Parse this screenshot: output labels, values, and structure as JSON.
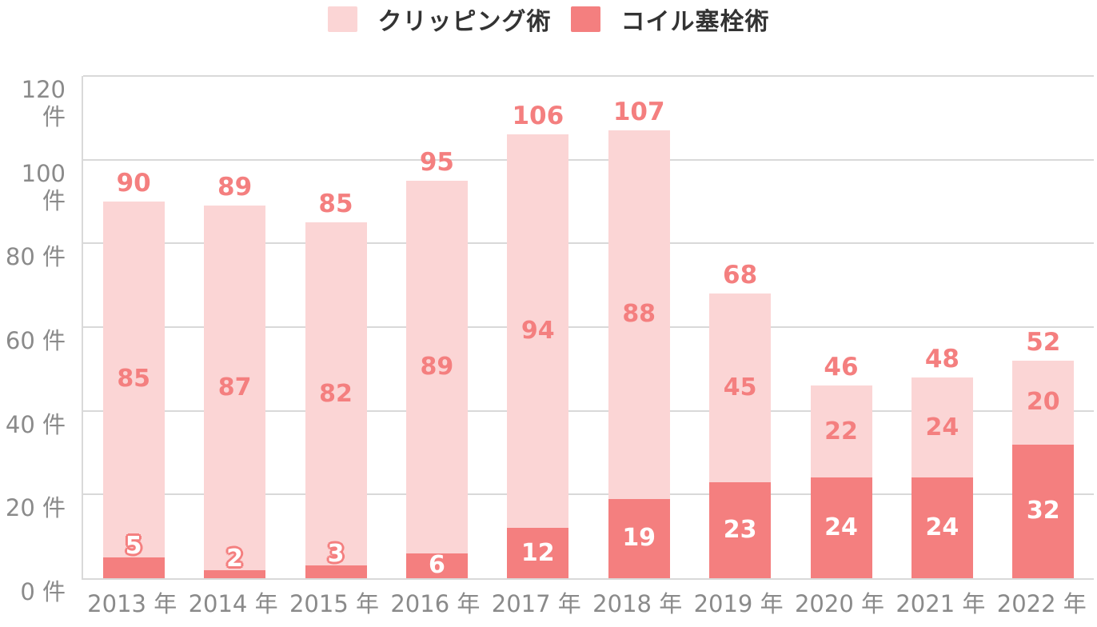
{
  "legend": {
    "items": [
      {
        "label": "クリッピング術",
        "color": "#fbd5d5"
      },
      {
        "label": "コイル塞栓術",
        "color": "#f47f7f"
      }
    ]
  },
  "chart_data": {
    "type": "bar",
    "stacked": true,
    "title": "",
    "categories": [
      "2013 年",
      "2014 年",
      "2015 年",
      "2016 年",
      "2017 年",
      "2018 年",
      "2019 年",
      "2020 年",
      "2021 年",
      "2022 年"
    ],
    "series": [
      {
        "name": "クリッピング術",
        "color": "#fbd5d5",
        "label_color": "#f47f7f",
        "values": [
          85,
          87,
          82,
          89,
          94,
          88,
          45,
          22,
          24,
          20
        ]
      },
      {
        "name": "コイル塞栓術",
        "color": "#f47f7f",
        "label_color": "#ffffff",
        "values": [
          5,
          2,
          3,
          6,
          12,
          19,
          23,
          24,
          24,
          32
        ]
      }
    ],
    "totals": [
      90,
      89,
      85,
      95,
      106,
      107,
      68,
      46,
      48,
      52
    ],
    "y_unit": "件",
    "y_ticks": [
      {
        "value": 0,
        "label": "0 件"
      },
      {
        "value": 20,
        "label": "20 件"
      },
      {
        "value": 40,
        "label": "40 件"
      },
      {
        "value": 60,
        "label": "60 件"
      },
      {
        "value": 80,
        "label": "80 件"
      },
      {
        "value": 100,
        "label": "100 件"
      },
      {
        "value": 120,
        "label": "120 件"
      }
    ],
    "ylim": [
      0,
      120
    ],
    "ytick_step": 20,
    "grid": true,
    "legend_position": "top"
  },
  "style": {
    "grid_color": "#d9d9d9",
    "axis_text_color": "#8a8a8a",
    "value_text_color": "#f47f7f",
    "legend_text_color": "#333333",
    "background": "#ffffff"
  }
}
